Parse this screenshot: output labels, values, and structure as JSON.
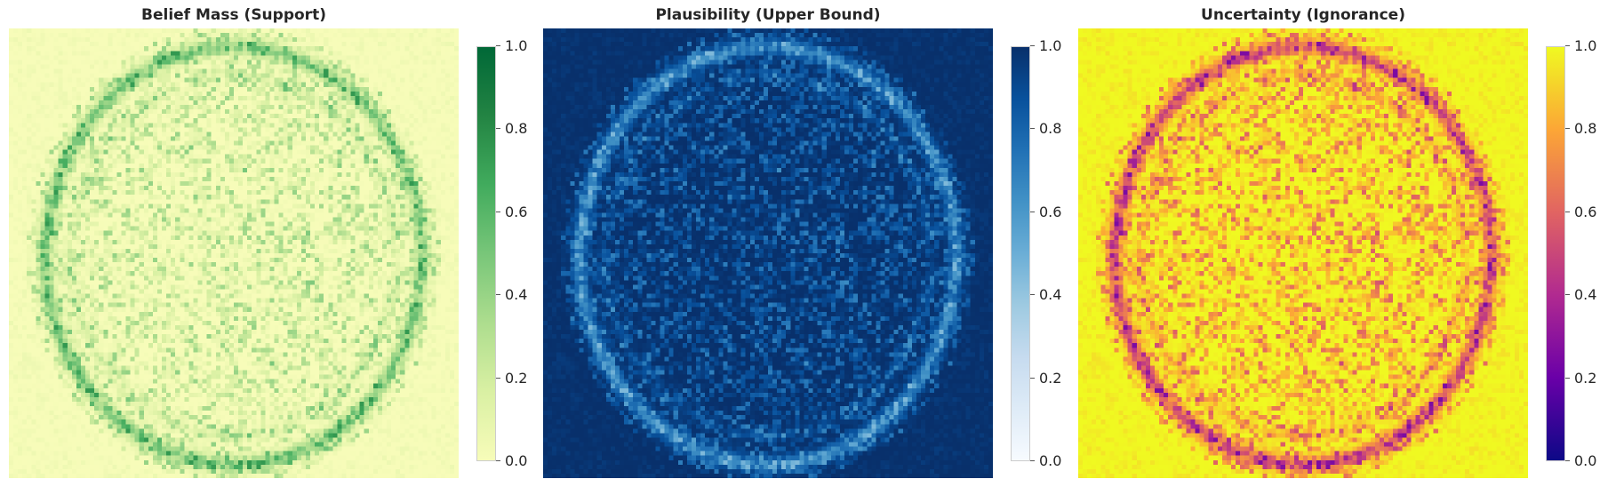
{
  "chart_data": [
    {
      "type": "heatmap",
      "title": "Belief Mass (Support)",
      "colormap": "Greens",
      "colorbar": {
        "min": 0.0,
        "max": 1.0,
        "ticks": [
          "0.0",
          "0.2",
          "0.4",
          "0.6",
          "0.8",
          "1.0"
        ]
      },
      "grid_resolution": [
        100,
        100
      ],
      "colors": [
        "#f7fcb9",
        "#d9f0a3",
        "#addd8e",
        "#78c679",
        "#41ab5d",
        "#238443",
        "#006837"
      ],
      "typical_range": [
        0.0,
        0.45
      ]
    },
    {
      "type": "heatmap",
      "title": "Plausibility (Upper Bound)",
      "colormap": "Blues",
      "colorbar": {
        "min": 0.0,
        "max": 1.0,
        "ticks": [
          "0.0",
          "0.2",
          "0.4",
          "0.6",
          "0.8",
          "1.0"
        ]
      },
      "grid_resolution": [
        100,
        100
      ],
      "colors": [
        "#f7fbff",
        "#deebf7",
        "#c6dbef",
        "#9ecae1",
        "#6baed6",
        "#4292c6",
        "#2171b5",
        "#08519c",
        "#08306b"
      ],
      "typical_range": [
        0.55,
        1.0
      ]
    },
    {
      "type": "heatmap",
      "title": "Uncertainty (Ignorance)",
      "colormap": "plasma",
      "colorbar": {
        "min": 0.0,
        "max": 1.0,
        "ticks": [
          "0.0",
          "0.2",
          "0.4",
          "0.6",
          "0.8",
          "1.0"
        ]
      },
      "grid_resolution": [
        100,
        100
      ],
      "colors": [
        "#0d0887",
        "#6a00a8",
        "#b12a90",
        "#e16462",
        "#fca636",
        "#f0f921"
      ],
      "typical_range": [
        0.45,
        1.0
      ]
    }
  ]
}
